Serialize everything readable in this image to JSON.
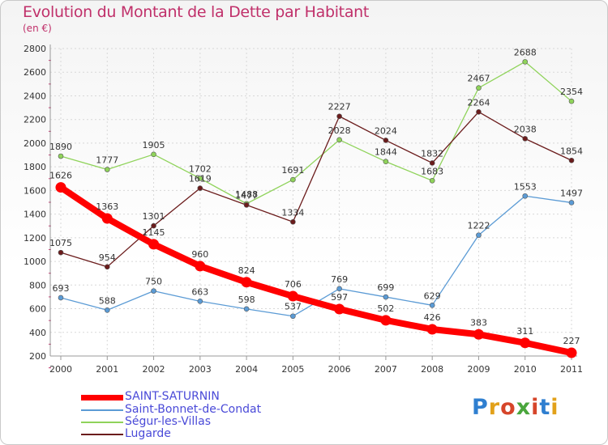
{
  "title": "Evolution du Montant de la Dette par Habitant",
  "subtitle": "(en €)",
  "logo": "Proxiti",
  "colors": {
    "saint_saturnin": "#ff0000",
    "saint_bonnet": "#5b9bd5",
    "segur": "#8fd35a",
    "lugarde": "#6b1c1c",
    "title": "#c0306a",
    "legend_text": "#4a4ad8"
  },
  "chart_data": {
    "type": "line",
    "title": "Evolution du Montant de la Dette par Habitant",
    "subtitle": "(en €)",
    "x": [
      "2000",
      "2001",
      "2002",
      "2003",
      "2004",
      "2005",
      "2006",
      "2007",
      "2008",
      "2009",
      "2010",
      "2011"
    ],
    "ylim": [
      200,
      2800
    ],
    "yticks": [
      200,
      400,
      600,
      800,
      1000,
      1200,
      1400,
      1600,
      1800,
      2000,
      2200,
      2400,
      2600,
      2800
    ],
    "grid": true,
    "legend_position": "bottom-left",
    "series": [
      {
        "name": "Saint-Bonnet-de-Condat",
        "color": "#5b9bd5",
        "values": [
          693,
          588,
          750,
          663,
          598,
          537,
          769,
          699,
          629,
          1222,
          1553,
          1497
        ]
      },
      {
        "name": "Ségur-les-Villas",
        "color": "#8fd35a",
        "values": [
          1890,
          1777,
          1905,
          1702,
          1488,
          1691,
          2028,
          1844,
          1683,
          2467,
          2688,
          2354
        ]
      },
      {
        "name": "Lugarde",
        "color": "#6b1c1c",
        "values": [
          1075,
          954,
          1301,
          1619,
          1477,
          1334,
          2227,
          2024,
          1832,
          2264,
          2038,
          1854
        ]
      },
      {
        "name": "SAINT-SATURNIN",
        "color": "#ff0000",
        "values": [
          1626,
          1363,
          1145,
          960,
          824,
          706,
          597,
          502,
          426,
          383,
          311,
          227
        ]
      }
    ]
  },
  "legend": [
    {
      "label": "SAINT-SATURNIN",
      "color": "#ff0000",
      "thick": true
    },
    {
      "label": "Saint-Bonnet-de-Condat",
      "color": "#5b9bd5",
      "thick": false
    },
    {
      "label": "Ségur-les-Villas",
      "color": "#8fd35a",
      "thick": false
    },
    {
      "label": "Lugarde",
      "color": "#6b1c1c",
      "thick": false
    }
  ]
}
